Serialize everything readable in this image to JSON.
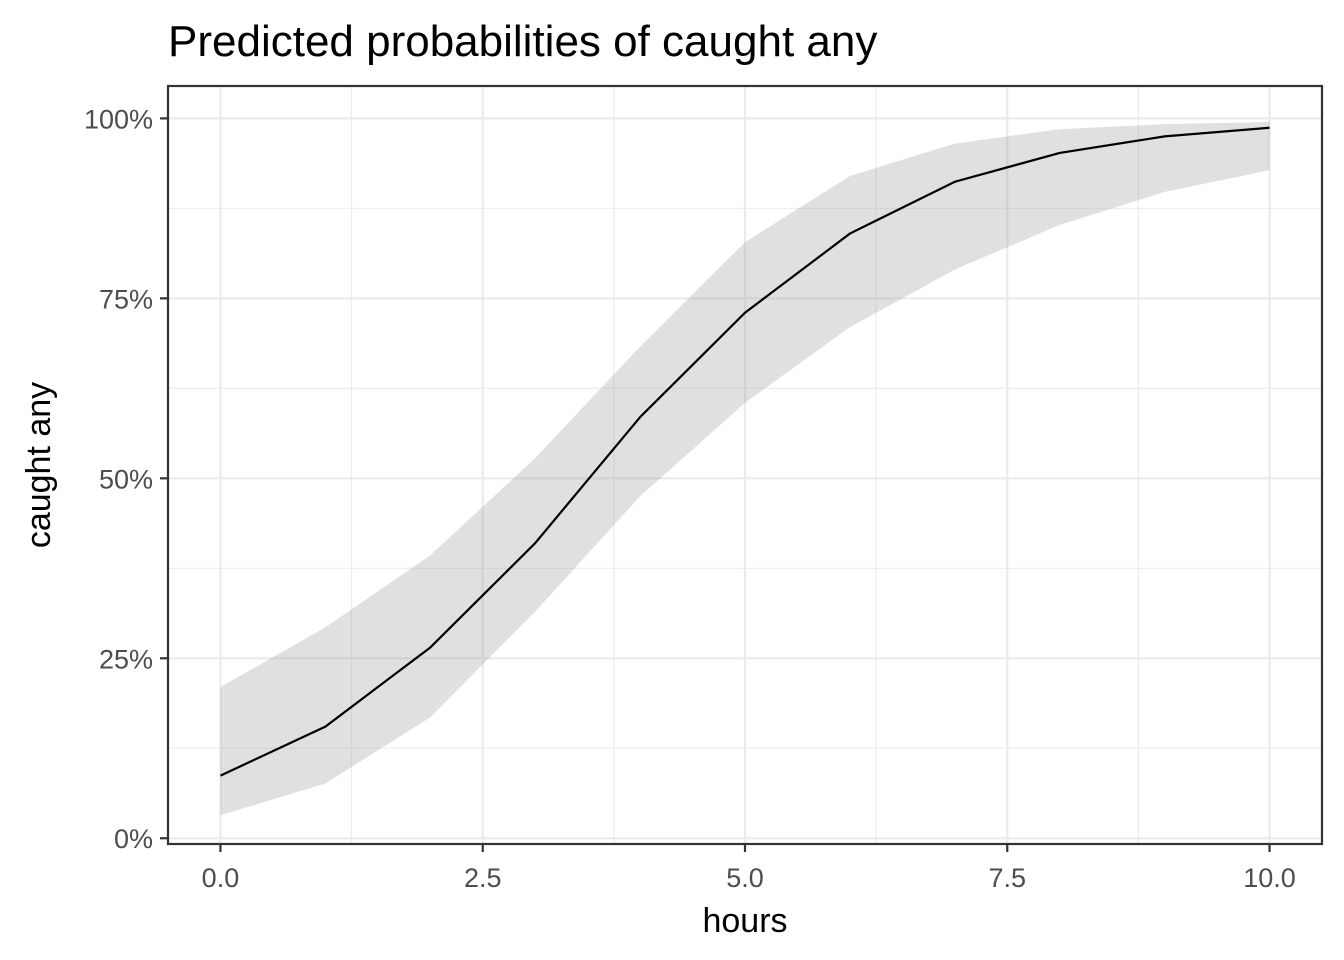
{
  "chart_data": {
    "type": "line",
    "title": "Predicted probabilities of caught any",
    "xlabel": "hours",
    "ylabel": "caught any",
    "xlim": [
      -0.5,
      10.5
    ],
    "ylim": [
      -0.008,
      1.045
    ],
    "x_ticks": [
      0,
      2.5,
      5,
      7.5,
      10
    ],
    "x_tick_labels": [
      "0.0",
      "2.5",
      "5.0",
      "7.5",
      "10.0"
    ],
    "y_ticks": [
      0,
      0.25,
      0.5,
      0.75,
      1.0
    ],
    "y_tick_labels": [
      "0%",
      "25%",
      "50%",
      "75%",
      "100%"
    ],
    "grid": true,
    "legend": "none",
    "series": [
      {
        "x": [
          0,
          1,
          2,
          3,
          4,
          5,
          6,
          7,
          8,
          9,
          10
        ],
        "values": [
          0.087,
          0.155,
          0.265,
          0.41,
          0.585,
          0.73,
          0.84,
          0.912,
          0.952,
          0.975,
          0.987
        ],
        "ci_low": [
          0.032,
          0.076,
          0.168,
          0.315,
          0.475,
          0.605,
          0.71,
          0.79,
          0.852,
          0.898,
          0.928
        ],
        "ci_high": [
          0.21,
          0.293,
          0.393,
          0.528,
          0.683,
          0.828,
          0.92,
          0.965,
          0.985,
          0.992,
          0.995
        ]
      }
    ],
    "colors": {
      "line": "#000000",
      "ribbon": "#999999",
      "grid": "#ebebeb",
      "border": "#333333",
      "tick_label": "#4d4d4d"
    }
  }
}
